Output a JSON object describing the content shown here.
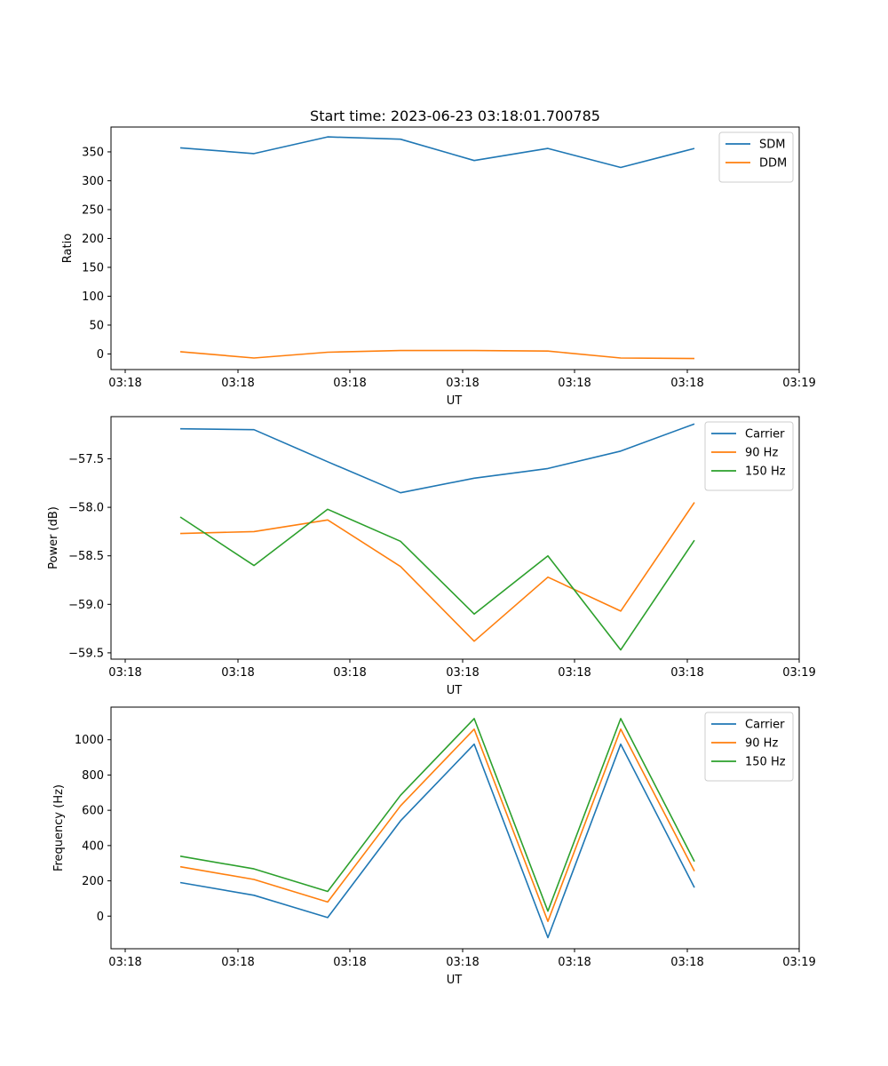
{
  "title": "Start time: 2023-06-23 03:18:01.700785",
  "chart_data": [
    {
      "type": "line",
      "xlabel": "UT",
      "ylabel": "Ratio",
      "x_tick_labels": [
        "03:18",
        "03:18",
        "03:18",
        "03:18",
        "03:18",
        "03:18",
        "03:19"
      ],
      "y_ticks": [
        0,
        50,
        100,
        150,
        200,
        250,
        300,
        350
      ],
      "y_tick_labels": [
        "0",
        "50",
        "100",
        "150",
        "200",
        "250",
        "300",
        "350"
      ],
      "ylim": [
        -27,
        393
      ],
      "legend_position": "top-right",
      "series": [
        {
          "name": "SDM",
          "color": "#1f77b4",
          "values": [
            357,
            347,
            376,
            372,
            335,
            356,
            323,
            356
          ]
        },
        {
          "name": "DDM",
          "color": "#ff7f0e",
          "values": [
            4,
            -7,
            3,
            6,
            6,
            5,
            -7,
            -8
          ]
        }
      ]
    },
    {
      "type": "line",
      "xlabel": "UT",
      "ylabel": "Power (dB)",
      "x_tick_labels": [
        "03:18",
        "03:18",
        "03:18",
        "03:18",
        "03:18",
        "03:18",
        "03:19"
      ],
      "y_ticks": [
        -59.5,
        -59.0,
        -58.5,
        -58.0,
        -57.5
      ],
      "y_tick_labels": [
        "−59.5",
        "−59.0",
        "−58.5",
        "−58.0",
        "−57.5"
      ],
      "ylim": [
        -59.565,
        -57.065
      ],
      "legend_position": "top-right",
      "series": [
        {
          "name": "Carrier",
          "color": "#1f77b4",
          "values": [
            -57.19,
            -57.2,
            -57.53,
            -57.85,
            -57.7,
            -57.6,
            -57.42,
            -57.14
          ]
        },
        {
          "name": "90 Hz",
          "color": "#ff7f0e",
          "values": [
            -58.27,
            -58.25,
            -58.13,
            -58.61,
            -59.38,
            -58.72,
            -59.07,
            -57.95
          ]
        },
        {
          "name": "150 Hz",
          "color": "#2ca02c",
          "values": [
            -58.1,
            -58.6,
            -58.02,
            -58.35,
            -59.1,
            -58.5,
            -59.47,
            -58.34
          ]
        }
      ]
    },
    {
      "type": "line",
      "xlabel": "UT",
      "ylabel": "Frequency (Hz)",
      "x_tick_labels": [
        "03:18",
        "03:18",
        "03:18",
        "03:18",
        "03:18",
        "03:18",
        "03:19"
      ],
      "y_ticks": [
        0,
        200,
        400,
        600,
        800,
        1000
      ],
      "y_tick_labels": [
        "0",
        "200",
        "400",
        "600",
        "800",
        "1000"
      ],
      "ylim": [
        -185,
        1185
      ],
      "legend_position": "top-right",
      "series": [
        {
          "name": "Carrier",
          "color": "#1f77b4",
          "values": [
            190,
            118,
            -8,
            540,
            975,
            -122,
            975,
            162
          ]
        },
        {
          "name": "90 Hz",
          "color": "#ff7f0e",
          "values": [
            280,
            208,
            80,
            625,
            1060,
            -30,
            1060,
            255
          ]
        },
        {
          "name": "150 Hz",
          "color": "#2ca02c",
          "values": [
            340,
            268,
            140,
            685,
            1120,
            28,
            1120,
            310
          ]
        }
      ]
    }
  ]
}
